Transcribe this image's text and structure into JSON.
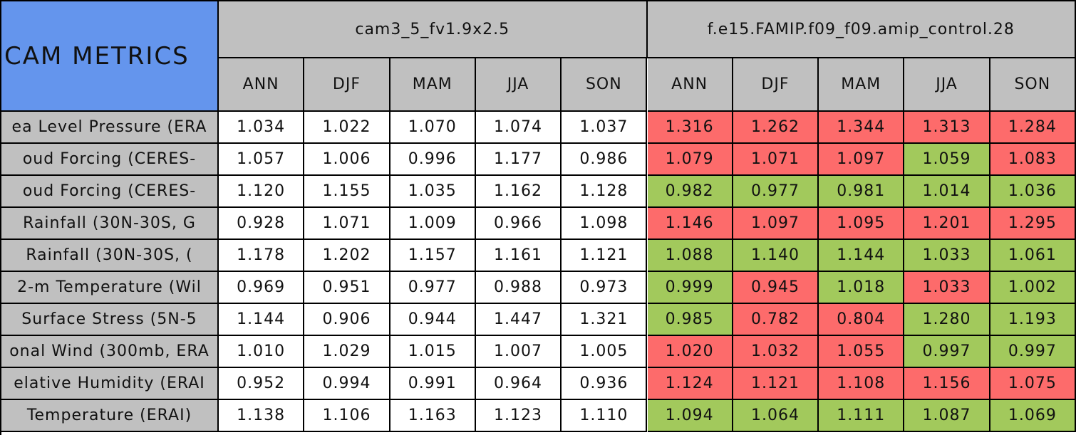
{
  "table": {
    "title": "CAM METRICS",
    "groups": [
      "cam3_5_fv1.9x2.5",
      "f.e15.FAMIP.f09_f09.amip_control.28"
    ],
    "seasons": [
      "ANN",
      "DJF",
      "MAM",
      "JJA",
      "SON"
    ],
    "rows": [
      {
        "name": "ea Level Pressure (ERA",
        "values": [
          "1.034",
          "1.022",
          "1.070",
          "1.074",
          "1.037",
          "1.316",
          "1.262",
          "1.344",
          "1.313",
          "1.284"
        ],
        "fills": [
          "#fd6b6b",
          "#fd6b6b",
          "#fd6b6b",
          "#fd6b6b",
          "#fd6b6b"
        ]
      },
      {
        "name": "oud Forcing (CERES-",
        "values": [
          "1.057",
          "1.006",
          "0.996",
          "1.177",
          "0.986",
          "1.079",
          "1.071",
          "1.097",
          "1.059",
          "1.083"
        ],
        "fills": [
          "#fd6b6b",
          "#fd6b6b",
          "#fd6b6b",
          "#a2c95c",
          "#fd6b6b"
        ]
      },
      {
        "name": "oud Forcing (CERES-",
        "values": [
          "1.120",
          "1.155",
          "1.035",
          "1.162",
          "1.128",
          "0.982",
          "0.977",
          "0.981",
          "1.014",
          "1.036"
        ],
        "fills": [
          "#a2c95c",
          "#a2c95c",
          "#a2c95c",
          "#a2c95c",
          "#a2c95c"
        ]
      },
      {
        "name": "Rainfall (30N-30S, G",
        "values": [
          "0.928",
          "1.071",
          "1.009",
          "0.966",
          "1.098",
          "1.146",
          "1.097",
          "1.095",
          "1.201",
          "1.295"
        ],
        "fills": [
          "#fd6b6b",
          "#fd6b6b",
          "#fd6b6b",
          "#fd6b6b",
          "#fd6b6b"
        ]
      },
      {
        "name": "Rainfall (30N-30S, (",
        "values": [
          "1.178",
          "1.202",
          "1.157",
          "1.161",
          "1.121",
          "1.088",
          "1.140",
          "1.144",
          "1.033",
          "1.061"
        ],
        "fills": [
          "#a2c95c",
          "#a2c95c",
          "#a2c95c",
          "#a2c95c",
          "#a2c95c"
        ]
      },
      {
        "name": "2-m Temperature (Wil",
        "values": [
          "0.969",
          "0.951",
          "0.977",
          "0.988",
          "0.973",
          "0.999",
          "0.945",
          "1.018",
          "1.033",
          "1.002"
        ],
        "fills": [
          "#a2c95c",
          "#fd6b6b",
          "#a2c95c",
          "#fd6b6b",
          "#a2c95c"
        ]
      },
      {
        "name": "Surface Stress (5N-5",
        "values": [
          "1.144",
          "0.906",
          "0.944",
          "1.447",
          "1.321",
          "0.985",
          "0.782",
          "0.804",
          "1.280",
          "1.193"
        ],
        "fills": [
          "#a2c95c",
          "#fd6b6b",
          "#fd6b6b",
          "#a2c95c",
          "#a2c95c"
        ]
      },
      {
        "name": "onal Wind (300mb, ERA",
        "values": [
          "1.010",
          "1.029",
          "1.015",
          "1.007",
          "1.005",
          "1.020",
          "1.032",
          "1.055",
          "0.997",
          "0.997"
        ],
        "fills": [
          "#fd6b6b",
          "#fd6b6b",
          "#fd6b6b",
          "#a2c95c",
          "#a2c95c"
        ]
      },
      {
        "name": "elative Humidity (ERAI",
        "values": [
          "0.952",
          "0.994",
          "0.991",
          "0.964",
          "0.936",
          "1.124",
          "1.121",
          "1.108",
          "1.156",
          "1.075"
        ],
        "fills": [
          "#fd6b6b",
          "#fd6b6b",
          "#fd6b6b",
          "#fd6b6b",
          "#fd6b6b"
        ]
      },
      {
        "name": "Temperature (ERAI)",
        "values": [
          "1.138",
          "1.106",
          "1.163",
          "1.123",
          "1.110",
          "1.094",
          "1.064",
          "1.111",
          "1.087",
          "1.069"
        ],
        "fills": [
          "#a2c95c",
          "#a2c95c",
          "#a2c95c",
          "#a2c95c",
          "#a2c95c"
        ]
      }
    ]
  }
}
